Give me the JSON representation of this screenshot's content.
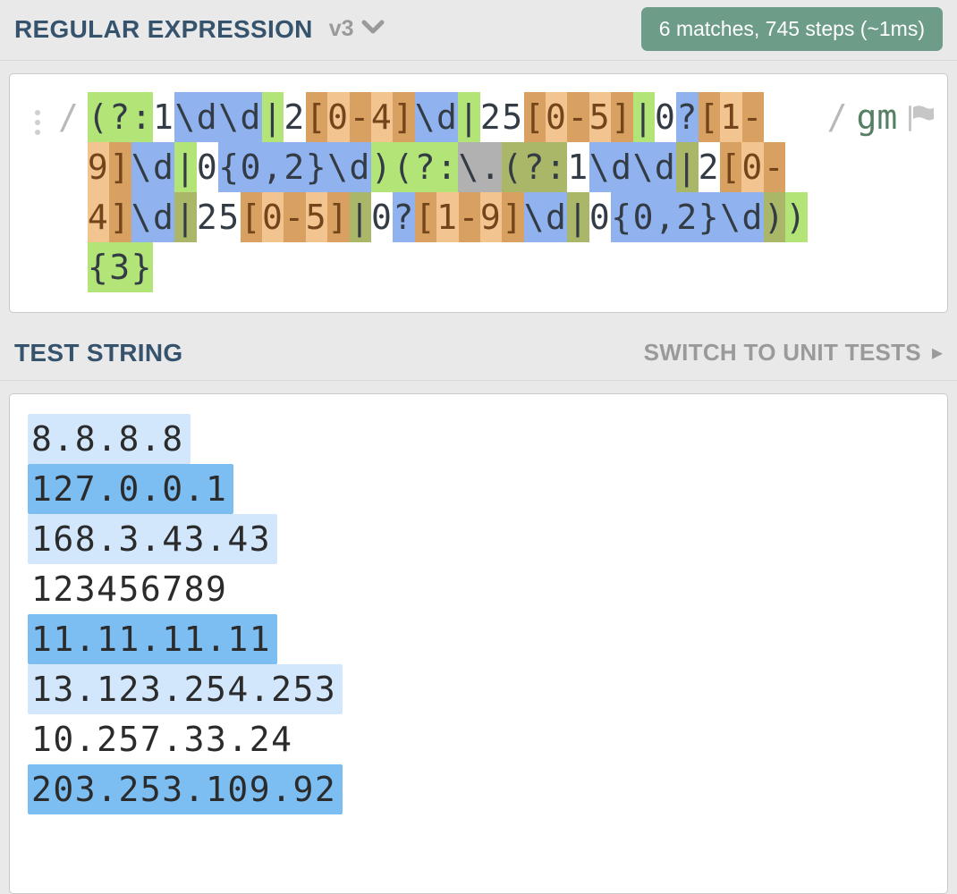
{
  "header": {
    "title": "REGULAR EXPRESSION",
    "version": "v3",
    "badge": "6 matches, 745 steps (~1ms)"
  },
  "regex": {
    "open_delimiter": "/",
    "close_delimiter": "/",
    "flags": "gm",
    "full_pattern": "(?:1\\d\\d|2[0-4]\\d|25[0-5]|0?[1-9]\\d|0{0,2}\\d)(?:\\.(?:1\\d\\d|2[0-4]\\d|25[0-5]|0?[1-9]\\d|0{0,2}\\d)){3}",
    "lines": [
      [
        {
          "t": "(?:",
          "c": "grp1"
        },
        {
          "t": "1",
          "c": "plain"
        },
        {
          "t": "\\d\\d",
          "c": "esc"
        },
        {
          "t": "|",
          "c": "grp1"
        },
        {
          "t": "2",
          "c": "plain"
        },
        {
          "t": "[",
          "c": "cls-d"
        },
        {
          "t": "0",
          "c": "cls-l"
        },
        {
          "t": "-",
          "c": "cls-d"
        },
        {
          "t": "4",
          "c": "cls-l"
        },
        {
          "t": "]",
          "c": "cls-d"
        },
        {
          "t": "\\d",
          "c": "esc"
        },
        {
          "t": "|",
          "c": "grp1"
        },
        {
          "t": "25",
          "c": "plain"
        },
        {
          "t": "[",
          "c": "cls-d"
        },
        {
          "t": "0",
          "c": "cls-l"
        },
        {
          "t": "-",
          "c": "cls-d"
        },
        {
          "t": "5",
          "c": "cls-l"
        },
        {
          "t": "]",
          "c": "cls-d"
        },
        {
          "t": "|",
          "c": "grp1"
        },
        {
          "t": "0",
          "c": "plain"
        },
        {
          "t": "?",
          "c": "esc"
        },
        {
          "t": "[",
          "c": "cls-d"
        },
        {
          "t": "1",
          "c": "cls-l"
        },
        {
          "t": "-",
          "c": "cls-d"
        }
      ],
      [
        {
          "t": "9",
          "c": "cls-l"
        },
        {
          "t": "]",
          "c": "cls-d"
        },
        {
          "t": "\\d",
          "c": "esc"
        },
        {
          "t": "|",
          "c": "grp1"
        },
        {
          "t": "0",
          "c": "plain"
        },
        {
          "t": "{0,2}",
          "c": "esc"
        },
        {
          "t": "\\d",
          "c": "esc"
        },
        {
          "t": ")",
          "c": "grp1"
        },
        {
          "t": "(?:",
          "c": "grp1"
        },
        {
          "t": "\\.",
          "c": "any"
        },
        {
          "t": "(?:",
          "c": "grp2"
        },
        {
          "t": "1",
          "c": "plain"
        },
        {
          "t": "\\d\\d",
          "c": "esc"
        },
        {
          "t": "|",
          "c": "grp2"
        },
        {
          "t": "2",
          "c": "plain"
        },
        {
          "t": "[",
          "c": "cls-d"
        },
        {
          "t": "0",
          "c": "cls-l"
        },
        {
          "t": "-",
          "c": "cls-d"
        }
      ],
      [
        {
          "t": "4",
          "c": "cls-l"
        },
        {
          "t": "]",
          "c": "cls-d"
        },
        {
          "t": "\\d",
          "c": "esc"
        },
        {
          "t": "|",
          "c": "grp2"
        },
        {
          "t": "25",
          "c": "plain"
        },
        {
          "t": "[",
          "c": "cls-d"
        },
        {
          "t": "0",
          "c": "cls-l"
        },
        {
          "t": "-",
          "c": "cls-d"
        },
        {
          "t": "5",
          "c": "cls-l"
        },
        {
          "t": "]",
          "c": "cls-d"
        },
        {
          "t": "|",
          "c": "grp2"
        },
        {
          "t": "0",
          "c": "plain"
        },
        {
          "t": "?",
          "c": "esc"
        },
        {
          "t": "[",
          "c": "cls-d"
        },
        {
          "t": "1",
          "c": "cls-l"
        },
        {
          "t": "-",
          "c": "cls-d"
        },
        {
          "t": "9",
          "c": "cls-l"
        },
        {
          "t": "]",
          "c": "cls-d"
        },
        {
          "t": "\\d",
          "c": "esc"
        },
        {
          "t": "|",
          "c": "grp2"
        },
        {
          "t": "0",
          "c": "plain"
        },
        {
          "t": "{0,2}",
          "c": "esc"
        },
        {
          "t": "\\d",
          "c": "esc"
        },
        {
          "t": ")",
          "c": "grp2"
        },
        {
          "t": ")",
          "c": "grp1"
        }
      ],
      [
        {
          "t": "{3}",
          "c": "grp1"
        }
      ]
    ]
  },
  "test_section": {
    "title": "TEST STRING",
    "switch_label": "SWITCH TO UNIT TESTS",
    "arrow": "▸"
  },
  "test_strings": [
    {
      "text": "8.8.8.8",
      "match": "light"
    },
    {
      "text": "127.0.0.1",
      "match": "dark"
    },
    {
      "text": "168.3.43.43",
      "match": "light"
    },
    {
      "text": "123456789",
      "match": "none"
    },
    {
      "text": "11.11.11.11",
      "match": "dark"
    },
    {
      "text": "13.123.254.253",
      "match": "light"
    },
    {
      "text": "10.257.33.24",
      "match": "none"
    },
    {
      "text": "203.253.109.92",
      "match": "dark"
    }
  ],
  "colors": {
    "page_bg": "#e9e9e9",
    "accent_header": "#36536e",
    "muted": "#9a9a9a",
    "badge_bg": "#6d9c88",
    "divider": "#d9d9d9",
    "box_border": "#c9c9c9",
    "grp1": "#b2e478",
    "grp2": "#abb768",
    "tok_blue": "#90b2ef",
    "cls_light": "#f2c48f",
    "cls_dark": "#d8a162",
    "cls_text": "#74451a",
    "tok_gray": "#b1b1b1",
    "flags_green": "#567f63",
    "delim": "#b9b9b9",
    "regex_text": "#333b44",
    "test_text": "#2b2b2b",
    "match_light": "#d2e6fc",
    "match_dark": "#7cbdf2"
  }
}
